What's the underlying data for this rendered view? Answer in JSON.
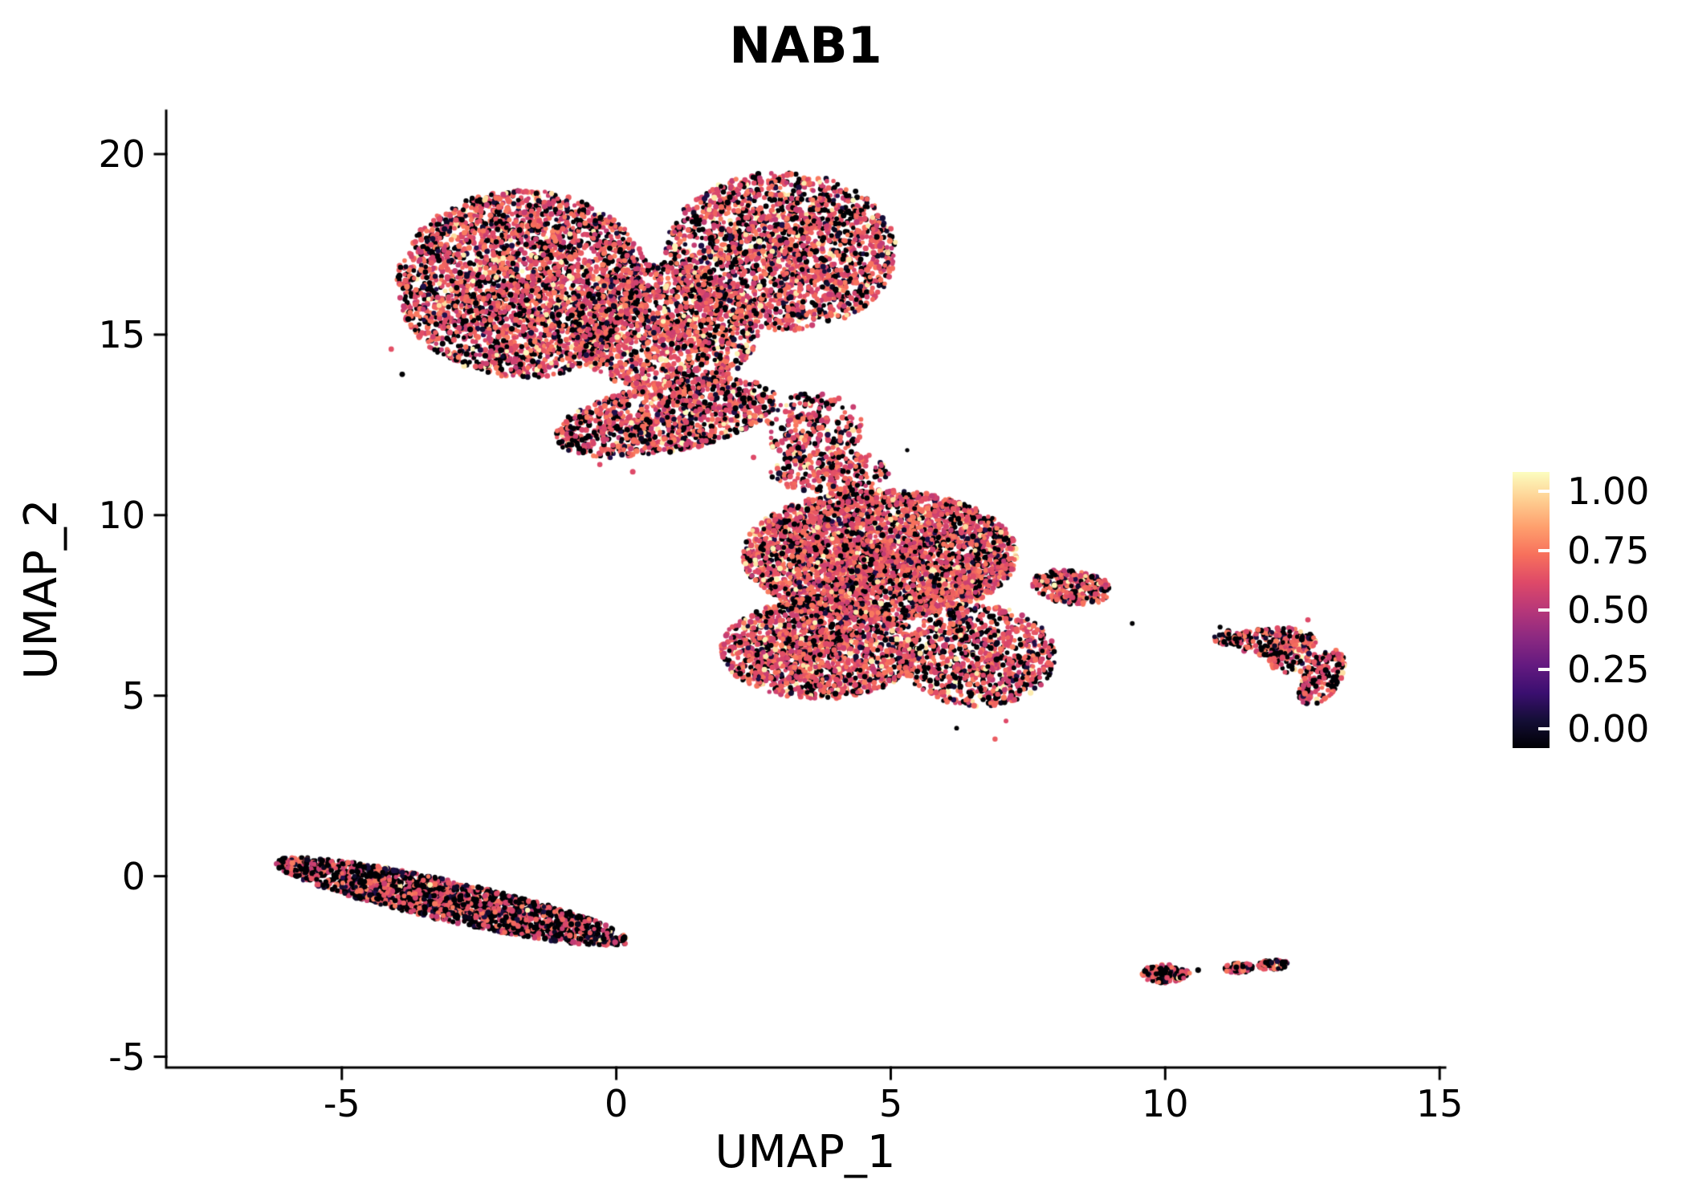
{
  "figure": {
    "background": "#ffffff"
  },
  "chart_data": {
    "type": "scatter",
    "title": "NAB1",
    "xlabel": "UMAP_1",
    "ylabel": "UMAP_2",
    "xlim": [
      -8.2,
      15.1
    ],
    "ylim": [
      -5.3,
      21.2
    ],
    "x_ticks": [
      -5,
      0,
      5,
      10,
      15
    ],
    "y_ticks": [
      -5,
      0,
      5,
      10,
      15,
      20
    ],
    "grid": false,
    "axis_color": "#000000",
    "legend": {
      "position": "right",
      "tick_values": [
        1.0,
        0.75,
        0.5,
        0.25,
        0.0
      ],
      "tick_labels": [
        "1.00",
        "0.75",
        "0.50",
        "0.25",
        "0.00"
      ],
      "colormap_name": "magma",
      "colormap_stops": [
        [
          0.0,
          "#000004"
        ],
        [
          0.1,
          "#140e36"
        ],
        [
          0.2,
          "#3b0f70"
        ],
        [
          0.3,
          "#641a80"
        ],
        [
          0.4,
          "#8c2981"
        ],
        [
          0.5,
          "#b73779"
        ],
        [
          0.6,
          "#de4968"
        ],
        [
          0.7,
          "#f7705c"
        ],
        [
          0.8,
          "#fe9f6d"
        ],
        [
          0.9,
          "#fecf92"
        ],
        [
          1.0,
          "#fcfdbf"
        ]
      ]
    },
    "point_style": {
      "radius_px": 3.1,
      "zero_color": "#000004",
      "mid_color": "#de4968",
      "high_color": "#fcfdbf"
    },
    "clusters": [
      {
        "name": "top-lobe-left",
        "cx": -1.7,
        "cy": 16.4,
        "rx": 2.3,
        "ry": 2.6,
        "angle": 0,
        "n": 3000,
        "frac_zero": 0.33,
        "frac_high": 0.05
      },
      {
        "name": "top-lobe-right",
        "cx": 3.0,
        "cy": 17.3,
        "rx": 2.1,
        "ry": 2.2,
        "angle": 0,
        "n": 2100,
        "frac_zero": 0.33,
        "frac_high": 0.05
      },
      {
        "name": "top-bridge",
        "cx": 0.9,
        "cy": 15.2,
        "rx": 1.7,
        "ry": 1.8,
        "angle": 0,
        "n": 1500,
        "frac_zero": 0.3,
        "frac_high": 0.06
      },
      {
        "name": "top-lower-band",
        "cx": 0.9,
        "cy": 12.7,
        "rx": 2.1,
        "ry": 0.95,
        "angle": 18,
        "n": 1100,
        "frac_zero": 0.32,
        "frac_high": 0.05
      },
      {
        "name": "top-neck",
        "cx": 3.6,
        "cy": 12.4,
        "rx": 0.9,
        "ry": 1.0,
        "angle": 0,
        "n": 260,
        "frac_zero": 0.35,
        "frac_high": 0.04
      },
      {
        "name": "mid-main",
        "cx": 4.8,
        "cy": 8.9,
        "rx": 2.5,
        "ry": 1.8,
        "angle": 0,
        "n": 3600,
        "frac_zero": 0.28,
        "frac_high": 0.06
      },
      {
        "name": "mid-lower-left",
        "cx": 3.7,
        "cy": 6.3,
        "rx": 1.8,
        "ry": 1.4,
        "angle": 0,
        "n": 1700,
        "frac_zero": 0.3,
        "frac_high": 0.06
      },
      {
        "name": "mid-lower-right",
        "cx": 6.6,
        "cy": 6.1,
        "rx": 1.4,
        "ry": 1.4,
        "angle": 0,
        "n": 900,
        "frac_zero": 0.34,
        "frac_high": 0.05
      },
      {
        "name": "mid-right-tail",
        "cx": 8.3,
        "cy": 8.0,
        "rx": 0.75,
        "ry": 0.45,
        "angle": -15,
        "n": 280,
        "frac_zero": 0.3,
        "frac_high": 0.04
      },
      {
        "name": "mid-top-neck",
        "cx": 3.9,
        "cy": 11.2,
        "rx": 1.1,
        "ry": 0.6,
        "angle": 0,
        "n": 240,
        "frac_zero": 0.35,
        "frac_high": 0.04
      },
      {
        "name": "band-bottom-left",
        "cx": -3.0,
        "cy": -0.7,
        "rx": 3.4,
        "ry": 0.55,
        "angle": -19,
        "n": 2000,
        "frac_zero": 0.55,
        "frac_high": 0.01
      },
      {
        "name": "small-right-top",
        "cx": 12.0,
        "cy": 6.5,
        "rx": 0.75,
        "ry": 0.4,
        "angle": 0,
        "n": 240,
        "frac_zero": 0.45,
        "frac_high": 0.03
      },
      {
        "name": "small-right-edge",
        "cx": 12.85,
        "cy": 5.5,
        "rx": 0.35,
        "ry": 0.8,
        "angle": -18,
        "n": 170,
        "frac_zero": 0.42,
        "frac_high": 0.04
      },
      {
        "name": "small-right-blip",
        "cx": 11.15,
        "cy": 6.6,
        "rx": 0.28,
        "ry": 0.2,
        "angle": 0,
        "n": 40,
        "frac_zero": 0.5,
        "frac_high": 0.02
      },
      {
        "name": "small-right-inner",
        "cx": 12.35,
        "cy": 5.95,
        "rx": 0.45,
        "ry": 0.35,
        "angle": 0,
        "n": 70,
        "frac_zero": 0.45,
        "frac_high": 0.03
      },
      {
        "name": "tiny-bottom-a",
        "cx": 10.0,
        "cy": -2.7,
        "rx": 0.45,
        "ry": 0.25,
        "angle": 0,
        "n": 140,
        "frac_zero": 0.45,
        "frac_high": 0.02
      },
      {
        "name": "tiny-bottom-b1",
        "cx": 11.35,
        "cy": -2.55,
        "rx": 0.28,
        "ry": 0.14,
        "angle": 0,
        "n": 70,
        "frac_zero": 0.45,
        "frac_high": 0.02
      },
      {
        "name": "tiny-bottom-b2",
        "cx": 11.95,
        "cy": -2.45,
        "rx": 0.32,
        "ry": 0.14,
        "angle": 0,
        "n": 70,
        "frac_zero": 0.45,
        "frac_high": 0.02
      }
    ],
    "outliers": [
      [
        6.9,
        3.8,
        0.65
      ],
      [
        9.4,
        7.0,
        0.0
      ],
      [
        0.3,
        11.2,
        0.6
      ],
      [
        5.3,
        11.8,
        0.0
      ],
      [
        -3.9,
        13.9,
        0.0
      ],
      [
        -4.1,
        14.6,
        0.62
      ],
      [
        10.6,
        -2.6,
        0.0
      ],
      [
        12.6,
        7.1,
        0.6
      ],
      [
        11.0,
        6.9,
        0.0
      ],
      [
        8.9,
        8.2,
        0.63
      ],
      [
        4.6,
        10.9,
        0.0
      ],
      [
        2.5,
        11.6,
        0.6
      ],
      [
        6.2,
        4.1,
        0.0
      ],
      [
        7.1,
        4.3,
        0.6
      ],
      [
        1.5,
        11.9,
        0.58
      ],
      [
        -0.3,
        11.4,
        0.6
      ]
    ]
  }
}
